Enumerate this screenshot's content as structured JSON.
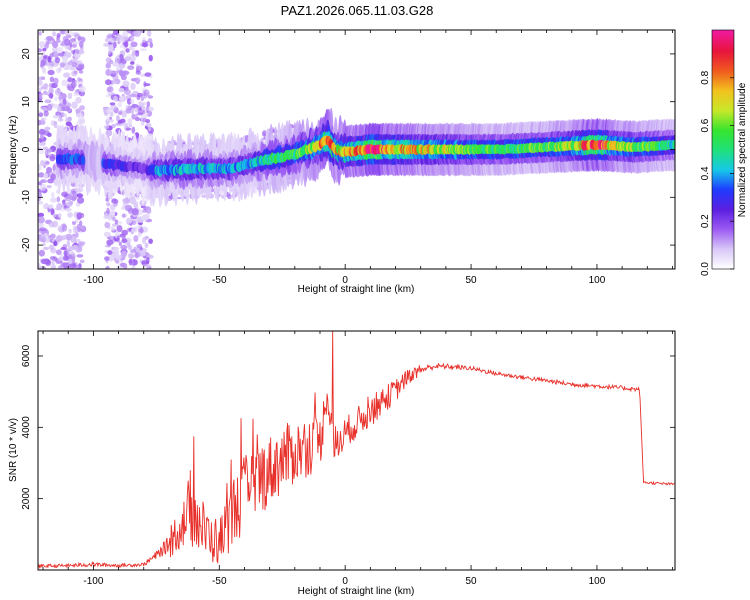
{
  "title": "PAZ1.2026.065.11.03.G28",
  "colors": {
    "snr_line": "#e8302a",
    "frame": "#000000",
    "colormap": [
      "#ffffff",
      "#d8c6f7",
      "#9b59f2",
      "#5a1fe0",
      "#1f3cff",
      "#16c9e8",
      "#20e07a",
      "#36e52e",
      "#c8e82a",
      "#f2c21e",
      "#f05a1e",
      "#e8143c",
      "#f01a9c"
    ]
  },
  "chart_data": [
    {
      "type": "heatmap",
      "xlabel": "Height of straight line (km)",
      "ylabel": "Frequency (Hz)",
      "xlim": [
        -122,
        131
      ],
      "ylim": [
        -25,
        25
      ],
      "xticks": [
        -100,
        -50,
        0,
        50,
        100
      ],
      "yticks": [
        -20,
        -10,
        0,
        10,
        20
      ],
      "colorbar": {
        "label": "Normalized spectral amplitude",
        "range": [
          0,
          1
        ],
        "ticks": [
          "0.0",
          "0.2",
          "0.4",
          "0.6",
          "0.8"
        ],
        "tick_values": [
          0.0,
          0.2,
          0.4,
          0.6,
          0.8
        ]
      },
      "ridge": [
        {
          "x": -105,
          "f": -2,
          "amp": 0.32
        },
        {
          "x": -95,
          "f": -3,
          "amp": 0.3
        },
        {
          "x": -80,
          "f": -4,
          "amp": 0.2
        },
        {
          "x": -75,
          "f": -4.5,
          "amp": 0.38
        },
        {
          "x": -60,
          "f": -4,
          "amp": 0.42
        },
        {
          "x": -45,
          "f": -4,
          "amp": 0.38
        },
        {
          "x": -38,
          "f": -3,
          "amp": 0.4
        },
        {
          "x": -30,
          "f": -2,
          "amp": 0.5
        },
        {
          "x": -20,
          "f": -1,
          "amp": 0.55
        },
        {
          "x": -10,
          "f": 1,
          "amp": 0.65
        },
        {
          "x": -7,
          "f": 2,
          "amp": 0.7
        },
        {
          "x": -4,
          "f": 0,
          "amp": 0.7
        },
        {
          "x": 0,
          "f": -0.5,
          "amp": 0.75
        },
        {
          "x": 10,
          "f": 0,
          "amp": 0.85
        },
        {
          "x": 30,
          "f": 0,
          "amp": 0.7
        },
        {
          "x": 60,
          "f": 0,
          "amp": 0.55
        },
        {
          "x": 80,
          "f": 0.5,
          "amp": 0.55
        },
        {
          "x": 100,
          "f": 1,
          "amp": 0.75
        },
        {
          "x": 115,
          "f": 0.5,
          "amp": 0.6
        },
        {
          "x": 131,
          "f": 1,
          "amp": 0.45
        }
      ],
      "noise_bands": [
        {
          "x_from": -122,
          "x_to": -104,
          "amp": 0.12
        },
        {
          "x_from": -95,
          "x_to": -77,
          "amp": 0.12
        }
      ]
    },
    {
      "type": "line",
      "xlabel": "Height of straight line (km)",
      "ylabel": "SNR (10 * v/v)",
      "xlim": [
        -122,
        131
      ],
      "ylim": [
        0,
        6700
      ],
      "xticks": [
        -100,
        -50,
        0,
        50,
        100
      ],
      "yticks": [
        2000,
        4000,
        6000
      ],
      "series": [
        {
          "name": "SNR",
          "x": [
            -122,
            -110,
            -100,
            -90,
            -80,
            -75,
            -70,
            -65,
            -60,
            -55,
            -50,
            -45,
            -40,
            -35,
            -30,
            -25,
            -20,
            -15,
            -10,
            -7,
            -5,
            0,
            10,
            20,
            25,
            30,
            35,
            40,
            50,
            60,
            70,
            80,
            90,
            100,
            110,
            117,
            118,
            119,
            125,
            131
          ],
          "y": [
            100,
            120,
            150,
            120,
            150,
            400,
            700,
            1200,
            1500,
            900,
            700,
            1500,
            2000,
            2400,
            2700,
            3000,
            3200,
            3400,
            3500,
            5000,
            3300,
            3800,
            4400,
            5000,
            5400,
            5600,
            5700,
            5700,
            5650,
            5500,
            5400,
            5300,
            5200,
            5150,
            5100,
            5050,
            2500,
            2450,
            2420,
            2400
          ],
          "noise": [
            80,
            80,
            100,
            80,
            80,
            200,
            400,
            600,
            900,
            700,
            600,
            900,
            1000,
            1000,
            900,
            900,
            800,
            800,
            700,
            400,
            600,
            400,
            400,
            300,
            200,
            150,
            150,
            120,
            100,
            100,
            100,
            100,
            100,
            100,
            100,
            100,
            80,
            60,
            60,
            60
          ],
          "spike": {
            "x": -5,
            "y": 6700
          }
        }
      ]
    }
  ]
}
